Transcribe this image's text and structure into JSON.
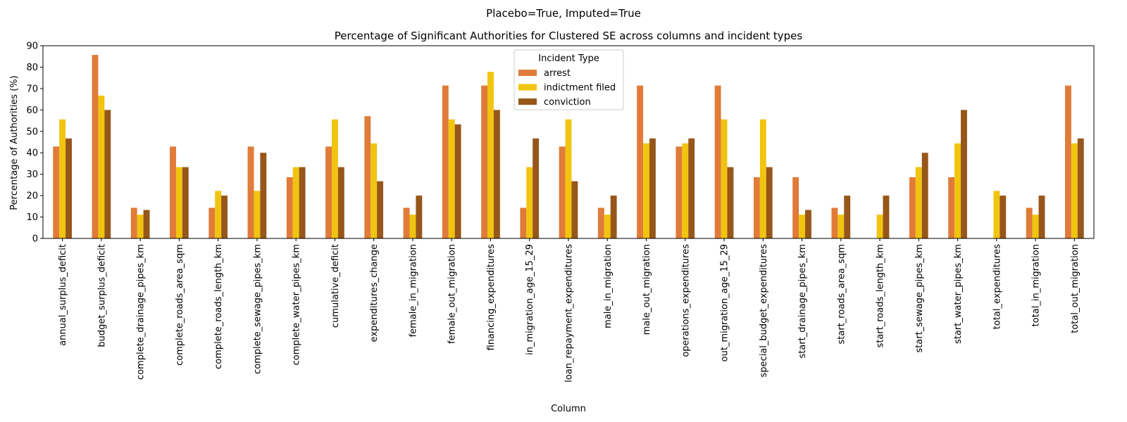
{
  "chart_data": {
    "type": "bar",
    "suptitle": "Placebo=True, Imputed=True",
    "title": "Percentage of Significant Authorities for Clustered SE across columns and incident types",
    "xlabel": "Column",
    "ylabel": "Percentage of Authorities (%)",
    "ylim": [
      0,
      90
    ],
    "yticks": [
      0,
      10,
      20,
      30,
      40,
      50,
      60,
      70,
      80,
      90
    ],
    "grid": false,
    "legend": {
      "title": "Incident Type",
      "placement": "top-center"
    },
    "categories": [
      "annual_surplus_deficit",
      "budget_surplus_deficit",
      "complete_drainage_pipes_km",
      "complete_roads_area_sqm",
      "complete_roads_length_km",
      "complete_sewage_pipes_km",
      "complete_water_pipes_km",
      "cumulative_deficit",
      "expenditures_change",
      "female_in_migration",
      "female_out_migration",
      "financing_expenditures",
      "in_migration_age_15_29",
      "loan_repayment_expenditures",
      "male_in_migration",
      "male_out_migration",
      "operations_expenditures",
      "out_migration_age_15_29",
      "special_budget_expenditures",
      "start_drainage_pipes_km",
      "start_roads_area_sqm",
      "start_roads_length_km",
      "start_sewage_pipes_km",
      "start_water_pipes_km",
      "total_expenditures",
      "total_in_migration",
      "total_out_migration"
    ],
    "series": [
      {
        "name": "arrest",
        "color": "#e07b39",
        "values": [
          42.9,
          85.7,
          14.3,
          42.9,
          14.3,
          42.9,
          28.6,
          42.9,
          57.1,
          14.3,
          71.4,
          71.4,
          14.3,
          42.9,
          14.3,
          71.4,
          42.9,
          71.4,
          28.6,
          28.6,
          14.3,
          0,
          28.6,
          28.6,
          0,
          14.3,
          71.4
        ]
      },
      {
        "name": "indictment filed",
        "color": "#f1c40f",
        "values": [
          55.6,
          66.7,
          11.1,
          33.3,
          22.2,
          22.2,
          33.3,
          55.6,
          44.4,
          11.1,
          55.6,
          77.8,
          33.3,
          55.6,
          11.1,
          44.4,
          44.4,
          55.6,
          55.6,
          11.1,
          11.1,
          11.1,
          33.3,
          44.4,
          22.2,
          11.1,
          44.4
        ]
      },
      {
        "name": "conviction",
        "color": "#97561a",
        "values": [
          46.7,
          60.0,
          13.3,
          33.3,
          20.0,
          40.0,
          33.3,
          33.3,
          26.7,
          20.0,
          53.3,
          60.0,
          46.7,
          26.7,
          20.0,
          46.7,
          46.7,
          33.3,
          33.3,
          13.3,
          20.0,
          20.0,
          40.0,
          60.0,
          20.0,
          20.0,
          46.7
        ]
      }
    ]
  }
}
